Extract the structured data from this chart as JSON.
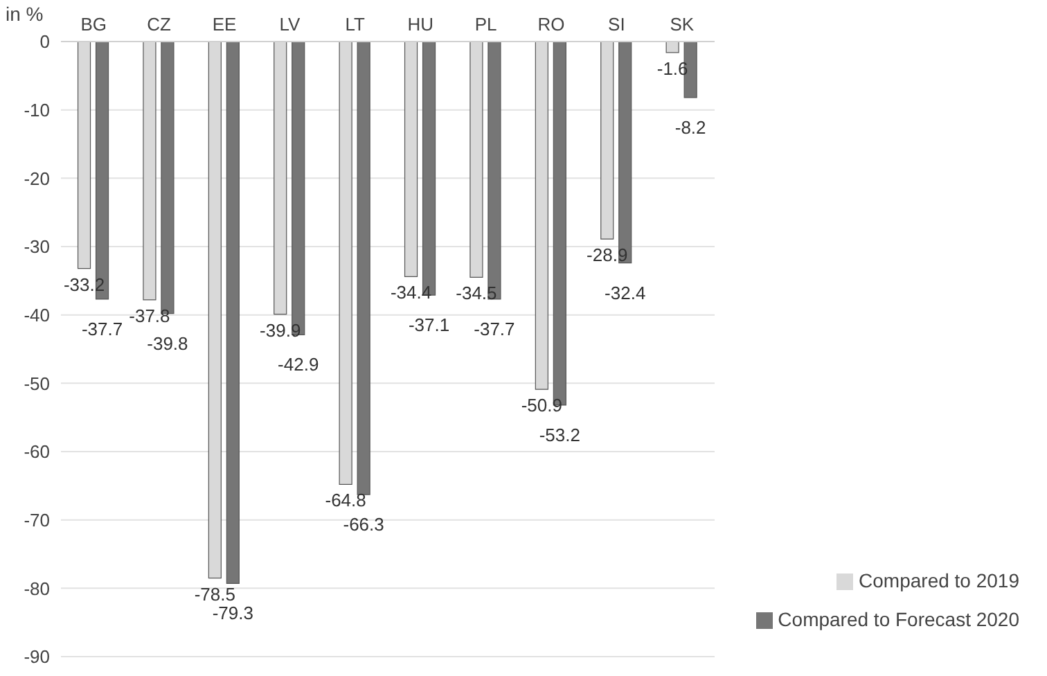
{
  "chart_data": {
    "type": "bar",
    "ylabel": "in %",
    "categories": [
      "BG",
      "CZ",
      "EE",
      "LV",
      "LT",
      "HU",
      "PL",
      "RO",
      "SI",
      "SK"
    ],
    "series": [
      {
        "name": "Compared to 2019",
        "color": "#d9d9d9",
        "values": [
          -33.2,
          -37.8,
          -78.5,
          -39.9,
          -64.8,
          -34.4,
          -34.5,
          -50.9,
          -28.9,
          -1.6
        ]
      },
      {
        "name": "Compared to Forecast 2020",
        "color": "#767676",
        "values": [
          -37.7,
          -39.8,
          -79.3,
          -42.9,
          -66.3,
          -37.1,
          -37.7,
          -53.2,
          -32.4,
          -8.2
        ]
      }
    ],
    "ylim": [
      -90,
      0
    ],
    "yticks": [
      0,
      -10,
      -20,
      -30,
      -40,
      -50,
      -60,
      -70,
      -80,
      -90
    ],
    "grid": "y",
    "legend": "bottom right",
    "data_labels": true
  }
}
